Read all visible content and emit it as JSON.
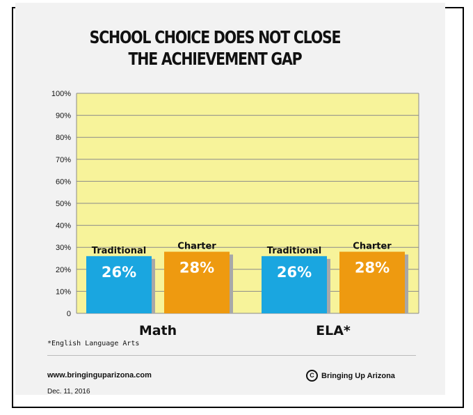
{
  "chart_data": {
    "type": "bar",
    "title_lines": [
      "SCHOOL CHOICE DOES NOT CLOSE",
      "THE ACHIEVEMENT GAP"
    ],
    "categories": [
      "Math",
      "ELA*"
    ],
    "series": [
      {
        "name": "Traditional",
        "color": "#1aa6e0",
        "values": [
          26,
          26
        ],
        "labels": [
          "26%",
          "26%"
        ]
      },
      {
        "name": "Charter",
        "color": "#ee9a10",
        "values": [
          28,
          28
        ],
        "labels": [
          "28%",
          "28%"
        ]
      }
    ],
    "ylim": [
      0,
      100
    ],
    "yticks": [
      0,
      10,
      20,
      30,
      40,
      50,
      60,
      70,
      80,
      90,
      100
    ],
    "yticklabels": [
      "0",
      "10%",
      "20%",
      "30%",
      "40%",
      "50%",
      "60%",
      "70%",
      "80%",
      "90%",
      "100%"
    ],
    "plot_background": "#f7f39a",
    "grid": true
  },
  "footnote": "*English Language Arts",
  "website": "www.bringinguparizona.com",
  "copyright_text": "Bringing Up Arizona",
  "copyright_symbol": "C",
  "date": "Dec. 11, 2016"
}
